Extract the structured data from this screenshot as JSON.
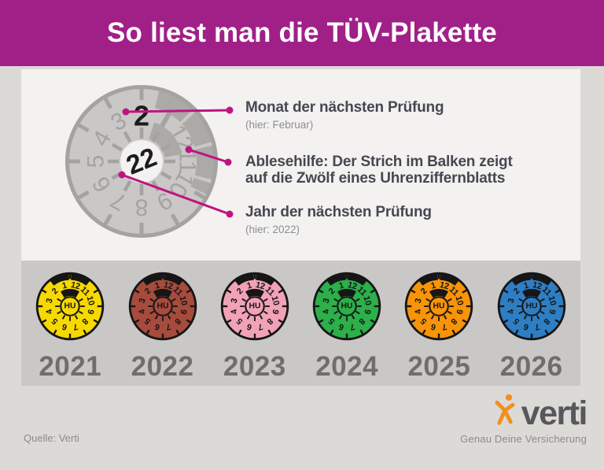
{
  "header": {
    "title": "So liest man die TÜV-Plakette",
    "bg_color": "#a12088"
  },
  "diagram": {
    "plaque": {
      "month_value": "2",
      "year_value": "22",
      "dial_numbers": [
        "12",
        "11",
        "10",
        "9",
        "8",
        "7",
        "6",
        "5",
        "4",
        "3"
      ],
      "fill_color": "#c9c8c6",
      "detail_color": "#a5a3a1",
      "band_color": "#abaaa7",
      "center_fill": "#f3f2f0",
      "number_color": "#1c1c1e"
    },
    "line_color": "#c01481",
    "annotations": [
      {
        "title": "Monat der nächsten Prüfung",
        "subtitle": "(hier: Februar)"
      },
      {
        "title": "Ablesehilfe: Der Strich im Balken zeigt",
        "title2": "auf die Zwölf eines Uhrenziffernblatts"
      },
      {
        "title": "Jahr der nächsten Prüfung",
        "subtitle": "(hier: 2022)"
      }
    ]
  },
  "badges": {
    "center_label": "HU",
    "dial_numbers": [
      "12",
      "11",
      "10",
      "9",
      "8",
      "7",
      "6",
      "5",
      "4",
      "3",
      "2",
      "1"
    ],
    "ink_color": "#161616",
    "items": [
      {
        "year": "2021",
        "color": "#f6d900"
      },
      {
        "year": "2022",
        "color": "#a74b3c"
      },
      {
        "year": "2023",
        "color": "#f2a2b7"
      },
      {
        "year": "2024",
        "color": "#2bb04a"
      },
      {
        "year": "2025",
        "color": "#f79408"
      },
      {
        "year": "2026",
        "color": "#2e7ec4"
      }
    ]
  },
  "footer": {
    "source": "Quelle: Verti",
    "brand": "verti",
    "tagline": "Genau Deine Versicherung",
    "brand_accent": "#f28f1f"
  }
}
